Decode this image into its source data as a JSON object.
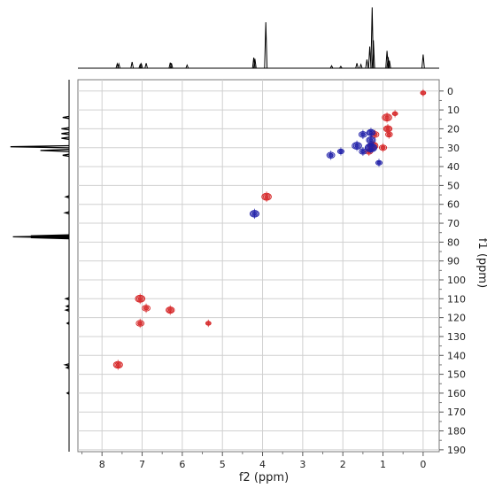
{
  "chart_data": {
    "type": "scatter",
    "subtype": "2D NMR contour (HSQC-style) with 1D projections",
    "xlabel": "f2 (ppm)",
    "ylabel": "f1 (ppm)",
    "xlim": [
      8.6,
      -0.4
    ],
    "ylim": [
      191,
      -6
    ],
    "x_ticks": [
      8,
      7,
      6,
      5,
      4,
      3,
      2,
      1,
      0
    ],
    "y_ticks": [
      0,
      10,
      20,
      30,
      40,
      50,
      60,
      70,
      80,
      90,
      100,
      110,
      120,
      130,
      140,
      150,
      160,
      170,
      180,
      190
    ],
    "grid": true,
    "axis_reversed": true,
    "x_tick_position": "bottom",
    "y_tick_position": "right",
    "colors": {
      "positive": "#d62728",
      "negative": "#1f1fa8",
      "projection": "#000000",
      "grid": "#d0d0d0"
    },
    "series": [
      {
        "color": "red",
        "points": [
          {
            "x": 7.6,
            "y": 145,
            "size": 1.0
          },
          {
            "x": 7.05,
            "y": 110,
            "size": 1.1
          },
          {
            "x": 7.05,
            "y": 123,
            "size": 0.8
          },
          {
            "x": 6.9,
            "y": 115,
            "size": 0.8
          },
          {
            "x": 6.3,
            "y": 116,
            "size": 0.9
          },
          {
            "x": 5.35,
            "y": 123,
            "size": 0.3
          },
          {
            "x": 3.9,
            "y": 56,
            "size": 1.1
          },
          {
            "x": 1.25,
            "y": 29,
            "size": 1.2
          },
          {
            "x": 1.2,
            "y": 23,
            "size": 0.8
          },
          {
            "x": 1.35,
            "y": 32,
            "size": 0.7
          },
          {
            "x": 0.9,
            "y": 14,
            "size": 1.1
          },
          {
            "x": 0.88,
            "y": 20,
            "size": 0.9
          },
          {
            "x": 0.85,
            "y": 23,
            "size": 0.6
          },
          {
            "x": 1.0,
            "y": 30,
            "size": 0.7
          },
          {
            "x": 0.7,
            "y": 12,
            "size": 0.3
          },
          {
            "x": 0.0,
            "y": 1,
            "size": 0.3
          }
        ]
      },
      {
        "color": "blue",
        "points": [
          {
            "x": 4.2,
            "y": 65,
            "size": 1.0
          },
          {
            "x": 2.3,
            "y": 34,
            "size": 0.8
          },
          {
            "x": 2.05,
            "y": 32,
            "size": 0.5
          },
          {
            "x": 1.65,
            "y": 29,
            "size": 1.1
          },
          {
            "x": 1.3,
            "y": 30,
            "size": 1.5
          },
          {
            "x": 1.3,
            "y": 22,
            "size": 0.9
          },
          {
            "x": 1.3,
            "y": 26,
            "size": 1.0
          },
          {
            "x": 1.5,
            "y": 23,
            "size": 0.8
          },
          {
            "x": 1.5,
            "y": 32,
            "size": 0.7
          },
          {
            "x": 1.1,
            "y": 38,
            "size": 0.5
          }
        ]
      }
    ],
    "proj_f2": [
      {
        "x": 7.62,
        "h": 0.07
      },
      {
        "x": 7.58,
        "h": 0.07
      },
      {
        "x": 7.25,
        "h": 0.1
      },
      {
        "x": 7.05,
        "h": 0.06
      },
      {
        "x": 7.02,
        "h": 0.07
      },
      {
        "x": 6.9,
        "h": 0.08
      },
      {
        "x": 6.3,
        "h": 0.09
      },
      {
        "x": 6.27,
        "h": 0.08
      },
      {
        "x": 5.88,
        "h": 0.05
      },
      {
        "x": 4.22,
        "h": 0.17
      },
      {
        "x": 4.19,
        "h": 0.15
      },
      {
        "x": 3.92,
        "h": 0.74
      },
      {
        "x": 2.28,
        "h": 0.04
      },
      {
        "x": 2.05,
        "h": 0.03
      },
      {
        "x": 1.65,
        "h": 0.08
      },
      {
        "x": 1.55,
        "h": 0.06
      },
      {
        "x": 1.4,
        "h": 0.14
      },
      {
        "x": 1.33,
        "h": 0.35
      },
      {
        "x": 1.27,
        "h": 0.98
      },
      {
        "x": 1.24,
        "h": 0.45
      },
      {
        "x": 0.9,
        "h": 0.28
      },
      {
        "x": 0.87,
        "h": 0.18
      },
      {
        "x": 0.84,
        "h": 0.12
      },
      {
        "x": 0.0,
        "h": 0.22
      }
    ],
    "proj_f1": [
      {
        "y": 14,
        "h": 0.1
      },
      {
        "y": 20,
        "h": 0.12
      },
      {
        "y": 22.5,
        "h": 0.12
      },
      {
        "y": 25,
        "h": 0.12
      },
      {
        "y": 29.5,
        "h": 0.92
      },
      {
        "y": 31.5,
        "h": 0.45
      },
      {
        "y": 34,
        "h": 0.1
      },
      {
        "y": 56,
        "h": 0.05
      },
      {
        "y": 64.5,
        "h": 0.06
      },
      {
        "y": 77.2,
        "h": 0.88
      },
      {
        "y": 76.7,
        "h": 0.6
      },
      {
        "y": 77.7,
        "h": 0.6
      },
      {
        "y": 110,
        "h": 0.05
      },
      {
        "y": 114,
        "h": 0.04
      },
      {
        "y": 116,
        "h": 0.05
      },
      {
        "y": 123,
        "h": 0.03
      },
      {
        "y": 145,
        "h": 0.06
      },
      {
        "y": 146.5,
        "h": 0.04
      },
      {
        "y": 160,
        "h": 0.03
      }
    ]
  }
}
